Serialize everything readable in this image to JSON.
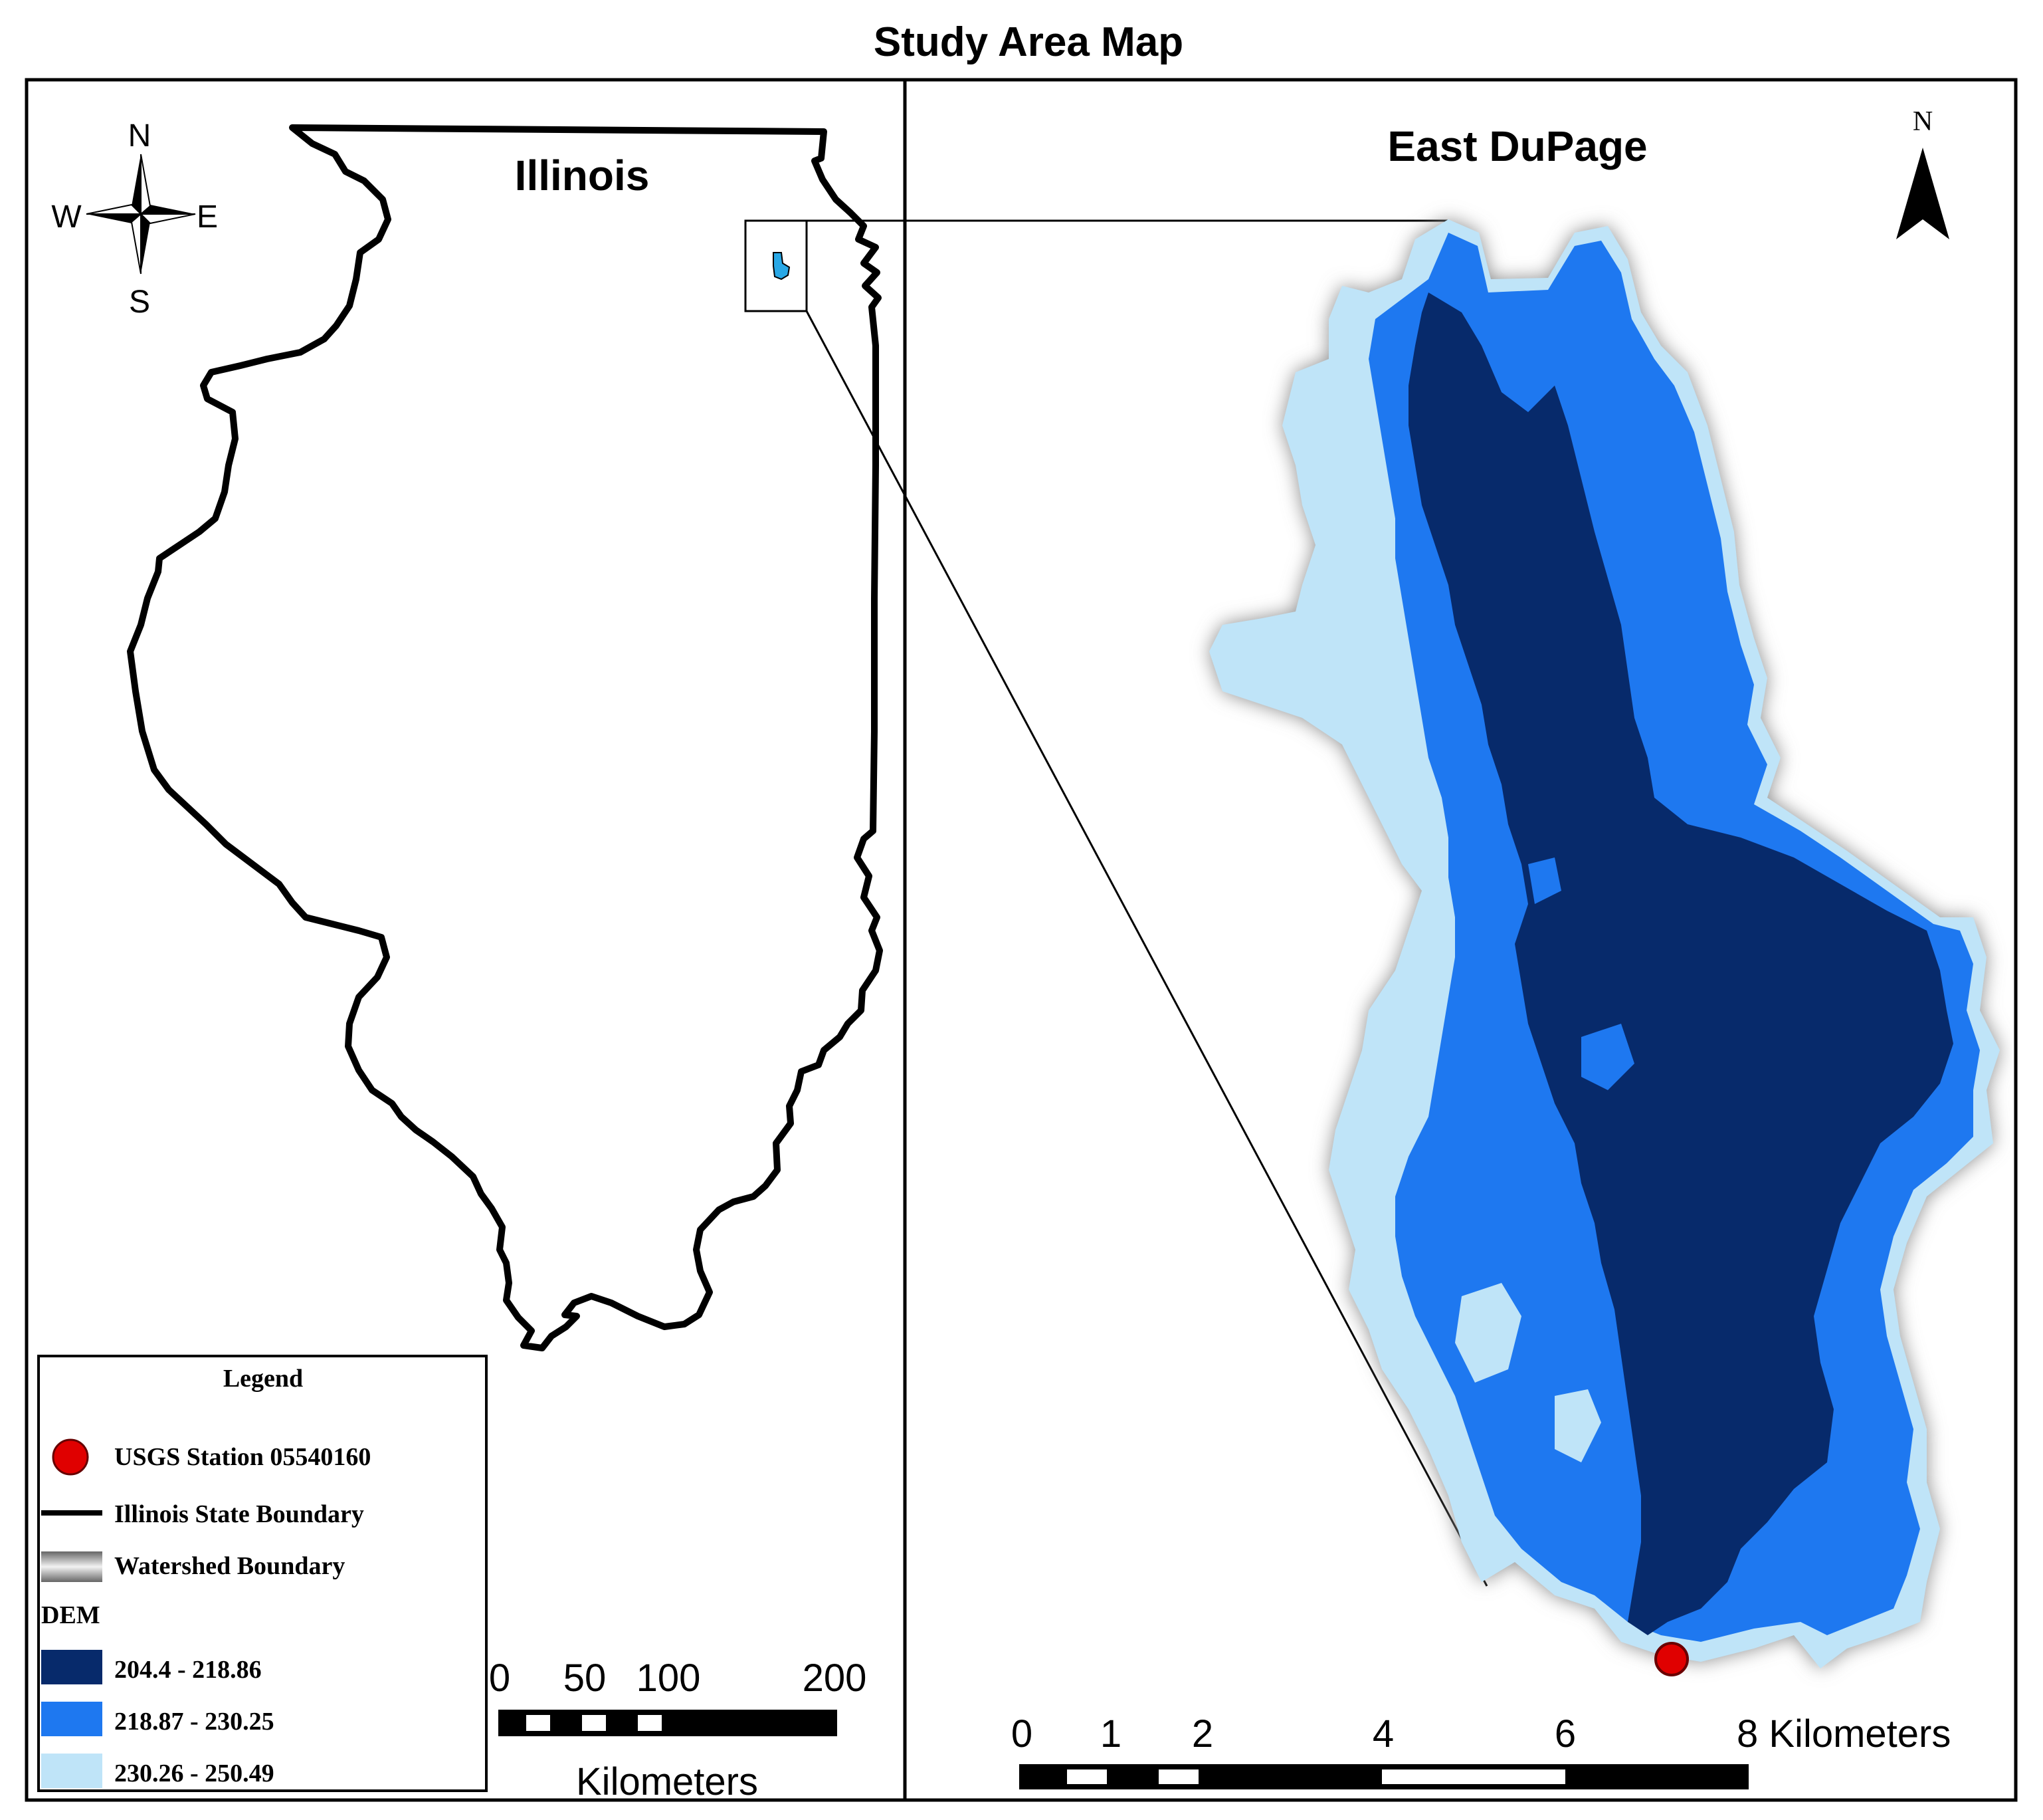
{
  "title": "Study Area Map",
  "left_panel": {
    "state_label": "Illinois",
    "compass": {
      "n": "N",
      "s": "S",
      "e": "E",
      "w": "W"
    },
    "scale_bar": {
      "ticks": [
        "0",
        "50",
        "100",
        "200"
      ],
      "units": "Kilometers"
    }
  },
  "right_panel": {
    "watershed_label": "East DuPage",
    "north_label": "N",
    "scale_bar": {
      "ticks": [
        "0",
        "1",
        "2",
        "4",
        "6",
        "8 Kilometers"
      ]
    }
  },
  "legend": {
    "title": "Legend",
    "items": [
      {
        "label": "USGS Station 05540160",
        "symbol": "red-point",
        "color": "#e00000"
      },
      {
        "label": "Illinois State Boundary",
        "symbol": "black-line",
        "color": "#000000"
      },
      {
        "label": "Watershed Boundary",
        "symbol": "gray-halo",
        "color": "#9a9a9a"
      }
    ],
    "dem_title": "DEM",
    "dem_classes": [
      {
        "label": "204.4 - 218.86",
        "color": "#072a6b"
      },
      {
        "label": "218.87 - 230.25",
        "color": "#1e78f0"
      },
      {
        "label": "230.26 - 250.49",
        "color": "#bfe4f8"
      }
    ]
  },
  "colors": {
    "dem_low": "#072a6b",
    "dem_mid": "#1e78f0",
    "dem_high": "#bfe4f8",
    "station": "#e00000",
    "boundary": "#000000"
  }
}
